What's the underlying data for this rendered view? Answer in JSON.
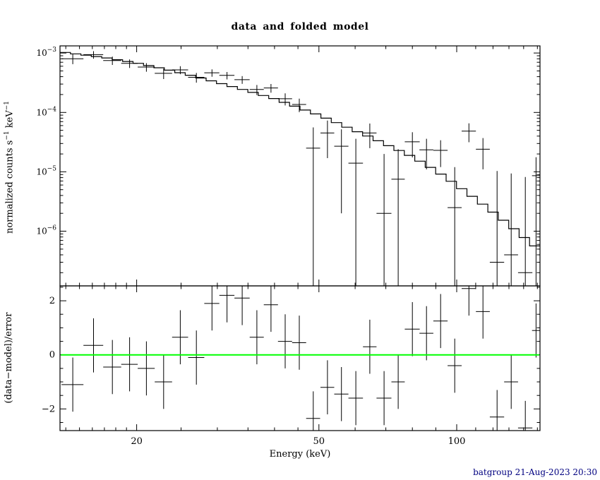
{
  "footer": {
    "text": "batgroup 21-Aug-2023 20:30",
    "color": "#000080"
  },
  "chart_data": {
    "type": "line",
    "title": "data and folded model",
    "xlabel": "Energy (keV)",
    "x_scale": "log",
    "x_range": [
      13.6,
      152
    ],
    "x_ticks_major": [
      20,
      50,
      100
    ],
    "x_ticks_minor": [
      14,
      15,
      16,
      17,
      18,
      19,
      25,
      30,
      35,
      40,
      45,
      60,
      70,
      80,
      90,
      110,
      120,
      130,
      140,
      150
    ],
    "grid": false,
    "background": "#ffffff",
    "panels": [
      {
        "name": "spectrum",
        "type": "scatter+step-model",
        "ylabel_parts": [
          "normalized counts s",
          "−1",
          " keV",
          "−1"
        ],
        "y_scale": "log",
        "y_range": [
          1.2e-07,
          0.00132
        ],
        "y_tick_exponents": [
          -3,
          -4,
          -5,
          -6
        ],
        "model_curve": {
          "x": [
            13.6,
            15,
            17,
            20,
            23,
            26,
            30,
            35,
            40,
            45,
            50,
            55,
            60,
            65,
            70,
            80,
            90,
            100,
            110,
            120,
            130,
            140,
            152
          ],
          "y": [
            0.00105,
            0.00095,
            0.00084,
            0.00068,
            0.00054,
            0.00043,
            0.00032,
            0.00023,
            0.00017,
            0.000122,
            9e-05,
            6.6e-05,
            4.9e-05,
            3.8e-05,
            2.9e-05,
            1.8e-05,
            1.05e-05,
            6e-06,
            3.5e-06,
            2.1e-06,
            1.3e-06,
            8e-07,
            4.8e-07
          ]
        },
        "points": {
          "x": [
            14.5,
            16.1,
            17.7,
            19.3,
            21.0,
            22.9,
            24.9,
            27.0,
            29.2,
            31.5,
            34.0,
            36.6,
            39.3,
            42.2,
            45.3,
            48.6,
            52.2,
            56.0,
            60.2,
            64.6,
            69.4,
            74.5,
            80.0,
            85.9,
            92.2,
            99.0,
            106.3,
            114.1,
            122.5,
            131.5,
            141.2,
            149.0
          ],
          "xerr": [
            0.8,
            0.8,
            0.8,
            0.8,
            0.9,
            1.0,
            1.0,
            1.1,
            1.1,
            1.2,
            1.3,
            1.3,
            1.4,
            1.5,
            1.6,
            1.7,
            1.8,
            2.0,
            2.2,
            2.2,
            2.6,
            2.5,
            3.0,
            3.0,
            3.3,
            3.5,
            3.8,
            4.0,
            4.4,
            4.6,
            5.1,
            3.0
          ],
          "y": [
            0.0008,
            0.00094,
            0.00075,
            0.00067,
            0.00058,
            0.000455,
            0.00052,
            0.00039,
            0.000465,
            0.00042,
            0.000356,
            0.000243,
            0.000258,
            0.00017,
            0.000136,
            2.5e-05,
            4.5e-05,
            2.7e-05,
            1.4e-05,
            4.5e-05,
            2e-06,
            7.5e-06,
            3.2e-05,
            2.35e-05,
            2.3e-05,
            2.5e-06,
            4.85e-05,
            2.4e-05,
            3e-07,
            4e-07,
            2e-07,
            8.6e-06
          ],
          "yerr": [
            0.00015,
            0.000135,
            0.00012,
            0.00011,
            9.5e-05,
            9e-05,
            8e-05,
            7.3e-05,
            6.6e-05,
            6e-05,
            5.3e-05,
            4.7e-05,
            4.3e-05,
            3.9e-05,
            3.5e-05,
            3.1e-05,
            2.8e-05,
            2.5e-05,
            2.2e-05,
            2e-05,
            1.8e-05,
            1.65e-05,
            1.45e-05,
            1.25e-05,
            1.1e-05,
            9.5e-06,
            1.7e-05,
            1.3e-05,
            1e-05,
            9e-06,
            8e-06,
            9e-06
          ]
        }
      },
      {
        "name": "residuals",
        "type": "scatter",
        "ylabel": "(data−model)/error",
        "y_scale": "linear",
        "y_range": [
          -2.8,
          2.55
        ],
        "y_ticks_major": [
          -2,
          0,
          2
        ],
        "y_ticks_minor": [
          -2.5,
          -1.5,
          -1,
          -0.5,
          0.5,
          1,
          1.5,
          2.5
        ],
        "zero_line": {
          "y": 0,
          "color": "#00ff00"
        },
        "points": {
          "x": [
            14.5,
            16.1,
            17.7,
            19.3,
            21.0,
            22.9,
            24.9,
            27.0,
            29.2,
            31.5,
            34.0,
            36.6,
            39.3,
            42.2,
            45.3,
            48.6,
            52.2,
            56.0,
            60.2,
            64.6,
            69.4,
            74.5,
            80.0,
            85.9,
            92.2,
            99.0,
            106.3,
            114.1,
            122.5,
            131.5,
            141.2,
            149.0
          ],
          "xerr": [
            0.8,
            0.8,
            0.8,
            0.8,
            0.9,
            1.0,
            1.0,
            1.1,
            1.1,
            1.2,
            1.3,
            1.3,
            1.4,
            1.5,
            1.6,
            1.7,
            1.8,
            2.0,
            2.2,
            2.2,
            2.6,
            2.5,
            3.0,
            3.0,
            3.3,
            3.5,
            3.8,
            4.0,
            4.4,
            4.6,
            5.1,
            3.0
          ],
          "y": [
            -1.1,
            0.35,
            -0.45,
            -0.35,
            -0.5,
            -1.0,
            0.65,
            -0.1,
            1.9,
            2.2,
            2.1,
            0.65,
            1.85,
            0.5,
            0.45,
            -2.35,
            -1.2,
            -1.45,
            -1.6,
            0.3,
            -1.6,
            -1.0,
            0.95,
            0.8,
            1.25,
            -0.4,
            2.45,
            1.6,
            -2.3,
            -1.0,
            -2.7,
            0.9
          ],
          "yerr": 1
        }
      }
    ]
  }
}
